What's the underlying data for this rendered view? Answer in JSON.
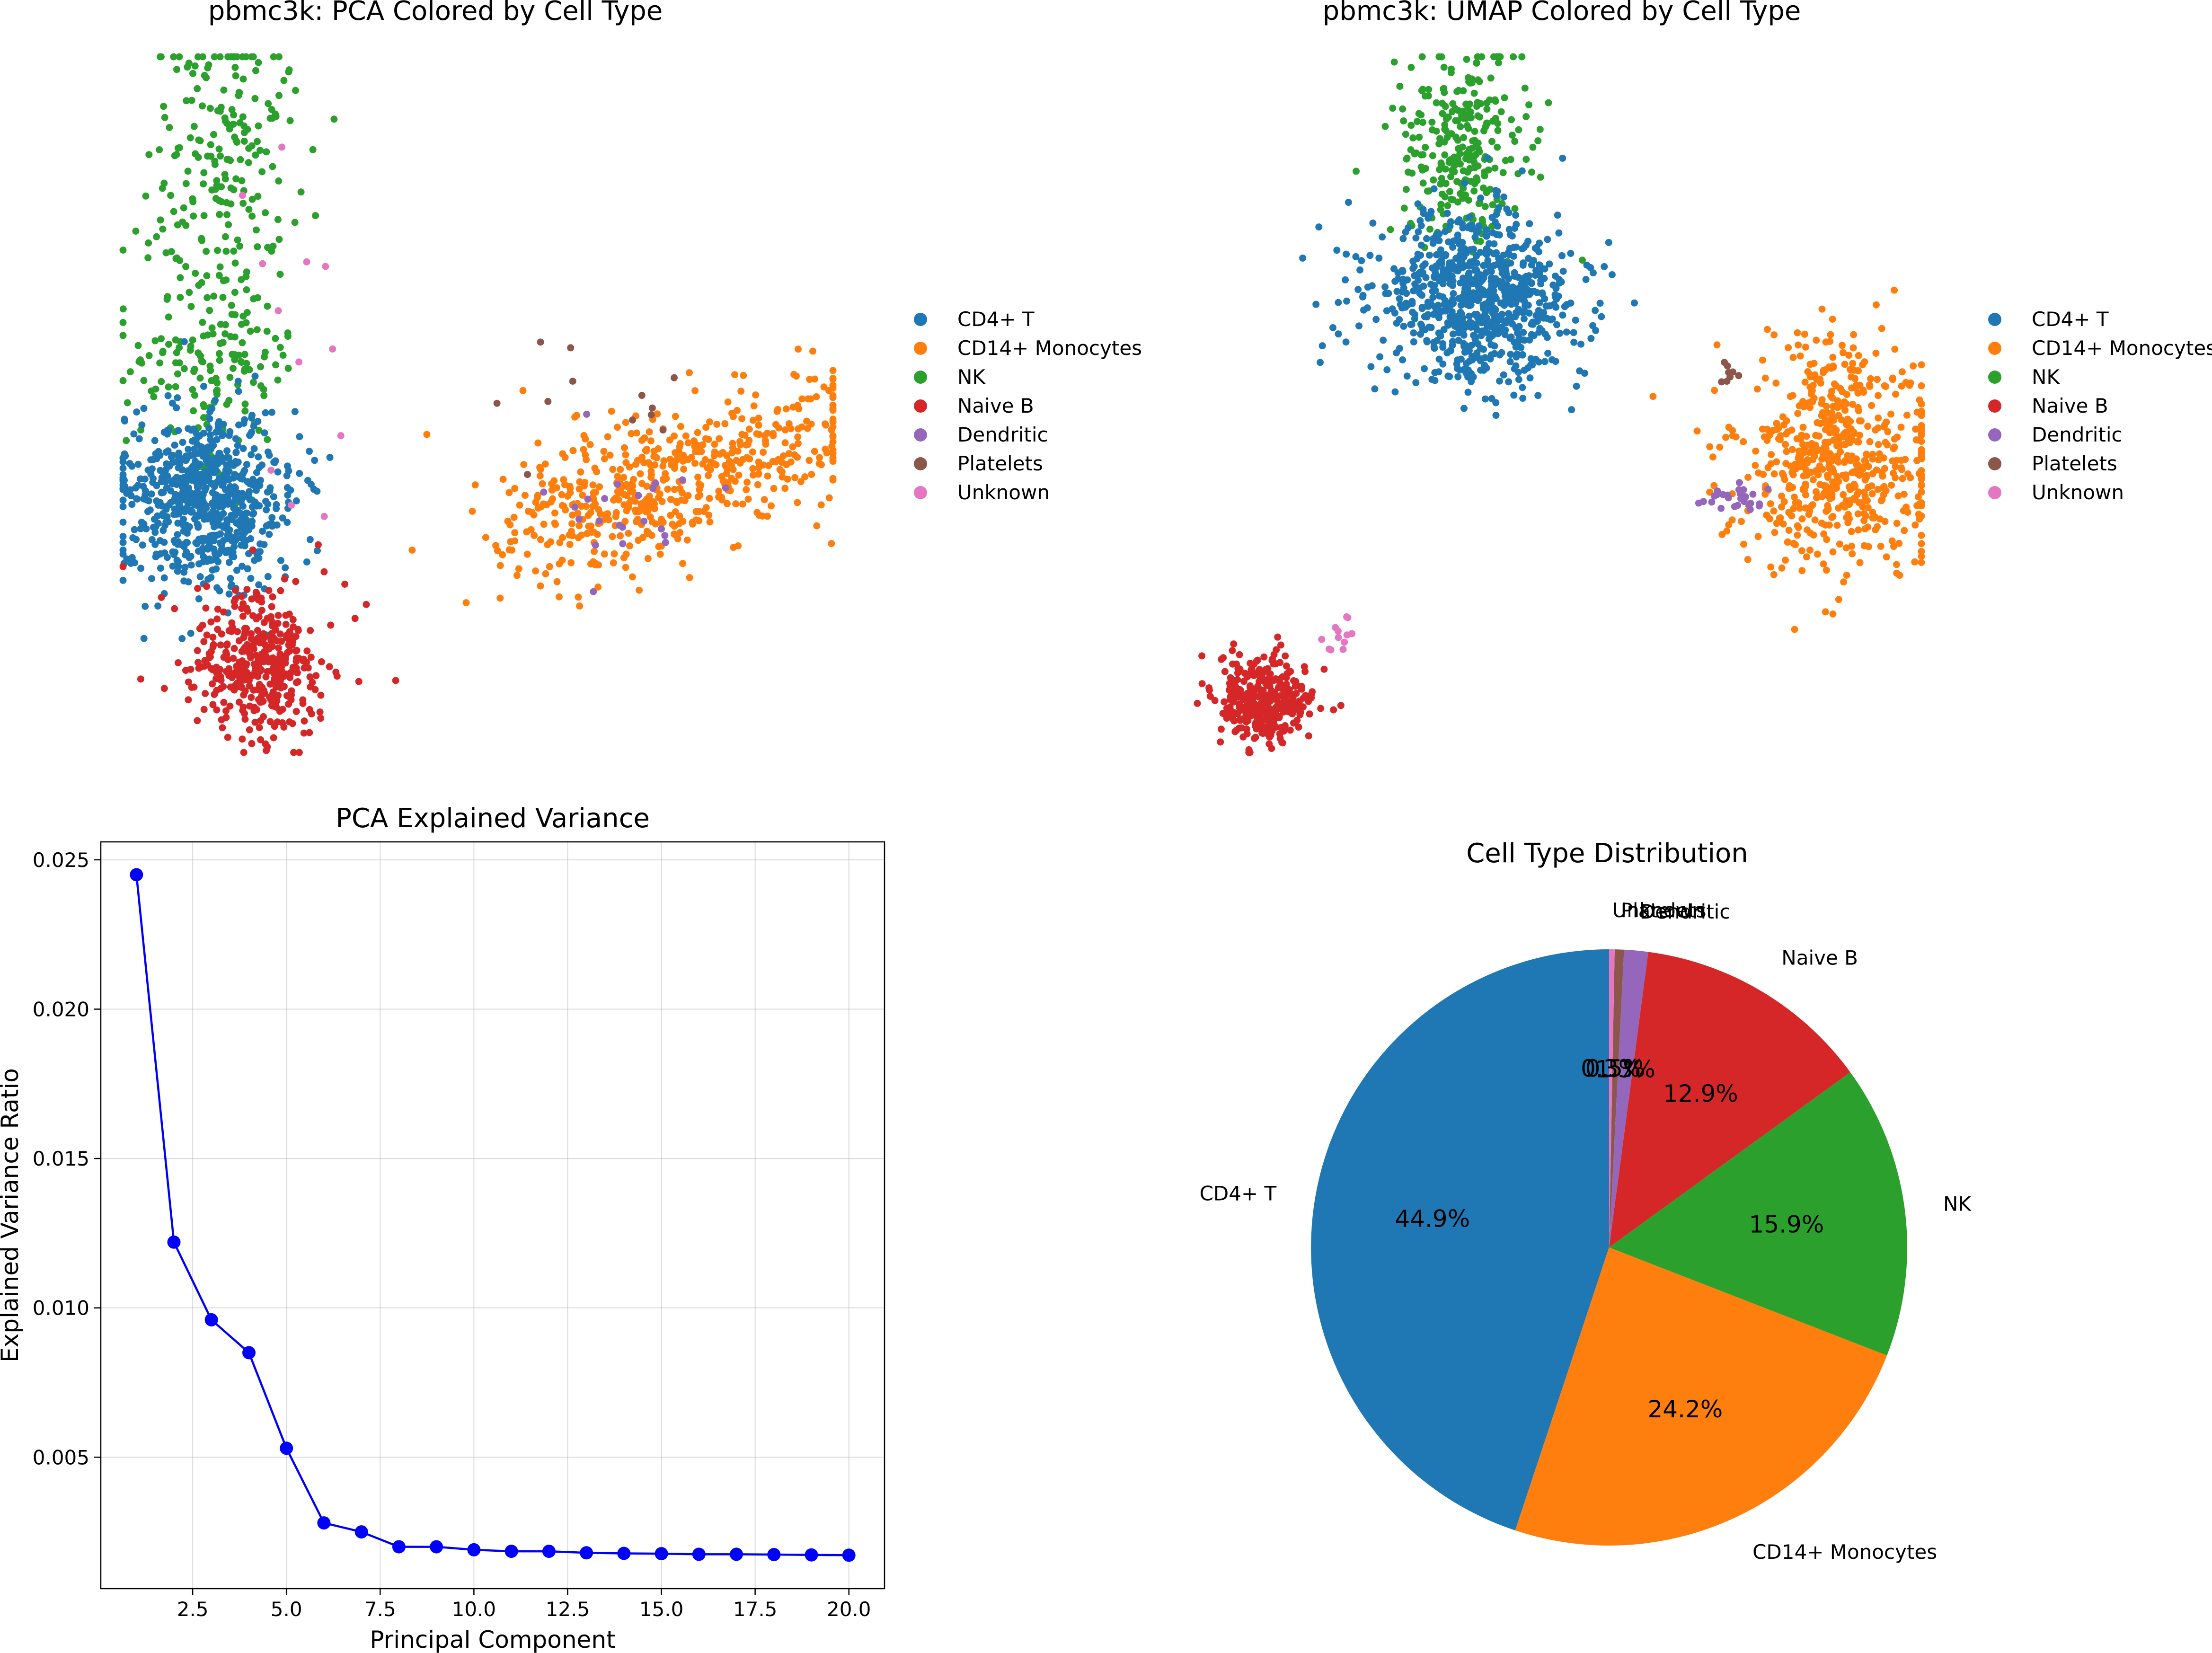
{
  "chart_data": [
    {
      "type": "scatter",
      "title": "pbmc3k: PCA Colored by Cell Type",
      "axes_visible": false,
      "legend": {
        "placement": "right",
        "entries": [
          "CD4+ T",
          "CD14+ Monocytes",
          "NK",
          "Naive B",
          "Dendritic",
          "Platelets",
          "Unknown"
        ]
      },
      "clusters": [
        {
          "name": "CD4+ T",
          "color": "#1f77b4"
        },
        {
          "name": "CD14+ Monocytes",
          "color": "#ff7f0e"
        },
        {
          "name": "NK",
          "color": "#2ca02c"
        },
        {
          "name": "Naive B",
          "color": "#d62728"
        },
        {
          "name": "Dendritic",
          "color": "#9467bd"
        },
        {
          "name": "Platelets",
          "color": "#8c564b"
        },
        {
          "name": "Unknown",
          "color": "#e377c2"
        }
      ]
    },
    {
      "type": "scatter",
      "title": "pbmc3k: UMAP Colored by Cell Type",
      "axes_visible": false,
      "legend": {
        "placement": "right",
        "entries": [
          "CD4+ T",
          "CD14+ Monocytes",
          "NK",
          "Naive B",
          "Dendritic",
          "Platelets",
          "Unknown"
        ]
      },
      "clusters": [
        {
          "name": "CD4+ T",
          "color": "#1f77b4"
        },
        {
          "name": "CD14+ Monocytes",
          "color": "#ff7f0e"
        },
        {
          "name": "NK",
          "color": "#2ca02c"
        },
        {
          "name": "Naive B",
          "color": "#d62728"
        },
        {
          "name": "Dendritic",
          "color": "#9467bd"
        },
        {
          "name": "Platelets",
          "color": "#8c564b"
        },
        {
          "name": "Unknown",
          "color": "#e377c2"
        }
      ]
    },
    {
      "type": "line",
      "title": "PCA Explained Variance",
      "xlabel": "Principal Component",
      "ylabel": "Explained Variance Ratio",
      "x": [
        1,
        2,
        3,
        4,
        5,
        6,
        7,
        8,
        9,
        10,
        11,
        12,
        13,
        14,
        15,
        16,
        17,
        18,
        19,
        20
      ],
      "values": [
        0.0245,
        0.0122,
        0.0096,
        0.0085,
        0.0053,
        0.0028,
        0.0025,
        0.002,
        0.002,
        0.0019,
        0.00185,
        0.00185,
        0.0018,
        0.00178,
        0.00177,
        0.00175,
        0.00175,
        0.00174,
        0.00173,
        0.00172
      ],
      "xlim": [
        0.05,
        20.95
      ],
      "ylim": [
        0.0006,
        0.0256
      ],
      "xticks": [
        2.5,
        5.0,
        7.5,
        10.0,
        12.5,
        15.0,
        17.5,
        20.0
      ],
      "xtick_labels": [
        "2.5",
        "5.0",
        "7.5",
        "10.0",
        "12.5",
        "15.0",
        "17.5",
        "20.0"
      ],
      "yticks": [
        0.005,
        0.01,
        0.015,
        0.02,
        0.025
      ],
      "ytick_labels": [
        "0.005",
        "0.010",
        "0.015",
        "0.020",
        "0.025"
      ],
      "grid": true,
      "line_color": "#0000ff",
      "marker": "circle"
    },
    {
      "type": "pie",
      "title": "Cell Type Distribution",
      "start_angle_deg": 90,
      "direction": "counterclockwise",
      "slices": [
        {
          "label": "CD4+ T",
          "value": 44.9,
          "pct_label": "44.9%",
          "color": "#1f77b4"
        },
        {
          "label": "CD14+ Monocytes",
          "value": 24.2,
          "pct_label": "24.2%",
          "color": "#ff7f0e"
        },
        {
          "label": "NK",
          "value": 15.9,
          "pct_label": "15.9%",
          "color": "#2ca02c"
        },
        {
          "label": "Naive B",
          "value": 12.9,
          "pct_label": "12.9%",
          "color": "#d62728"
        },
        {
          "label": "Dendritic",
          "value": 1.3,
          "pct_label": "1.3%",
          "color": "#9467bd"
        },
        {
          "label": "Platelets",
          "value": 0.5,
          "pct_label": "0.5%",
          "color": "#8c564b"
        },
        {
          "label": "Unknown",
          "value": 0.3,
          "pct_label": "0.3%",
          "color": "#e377c2"
        }
      ]
    }
  ]
}
